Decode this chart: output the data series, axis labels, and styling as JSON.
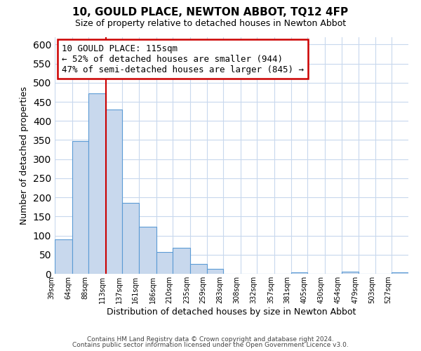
{
  "title": "10, GOULD PLACE, NEWTON ABBOT, TQ12 4FP",
  "subtitle": "Size of property relative to detached houses in Newton Abbot",
  "xlabel": "Distribution of detached houses by size in Newton Abbot",
  "ylabel": "Number of detached properties",
  "footer_line1": "Contains HM Land Registry data © Crown copyright and database right 2024.",
  "footer_line2": "Contains public sector information licensed under the Open Government Licence v3.0.",
  "bin_labels": [
    "39sqm",
    "64sqm",
    "88sqm",
    "113sqm",
    "137sqm",
    "161sqm",
    "186sqm",
    "210sqm",
    "235sqm",
    "259sqm",
    "283sqm",
    "308sqm",
    "332sqm",
    "357sqm",
    "381sqm",
    "405sqm",
    "430sqm",
    "454sqm",
    "479sqm",
    "503sqm",
    "527sqm"
  ],
  "bar_values": [
    90,
    347,
    472,
    430,
    186,
    124,
    57,
    68,
    25,
    13,
    0,
    0,
    0,
    0,
    3,
    0,
    0,
    5,
    0,
    0,
    3
  ],
  "bar_color": "#c8d8ed",
  "bar_edge_color": "#5b9bd5",
  "vline_color": "#cc0000",
  "vline_x_index": 3,
  "annotation_line0": "10 GOULD PLACE: 115sqm",
  "annotation_line1": "← 52% of detached houses are smaller (944)",
  "annotation_line2": "47% of semi-detached houses are larger (845) →",
  "annotation_box_facecolor": "#ffffff",
  "annotation_box_edgecolor": "#cc0000",
  "ylim": [
    0,
    620
  ],
  "yticks": [
    0,
    50,
    100,
    150,
    200,
    250,
    300,
    350,
    400,
    450,
    500,
    550,
    600
  ],
  "background_color": "#ffffff",
  "grid_color": "#c8d8ed",
  "bin_edges": [
    39,
    64,
    88,
    113,
    137,
    161,
    186,
    210,
    235,
    259,
    283,
    308,
    332,
    357,
    381,
    405,
    430,
    454,
    479,
    503,
    527,
    551
  ]
}
